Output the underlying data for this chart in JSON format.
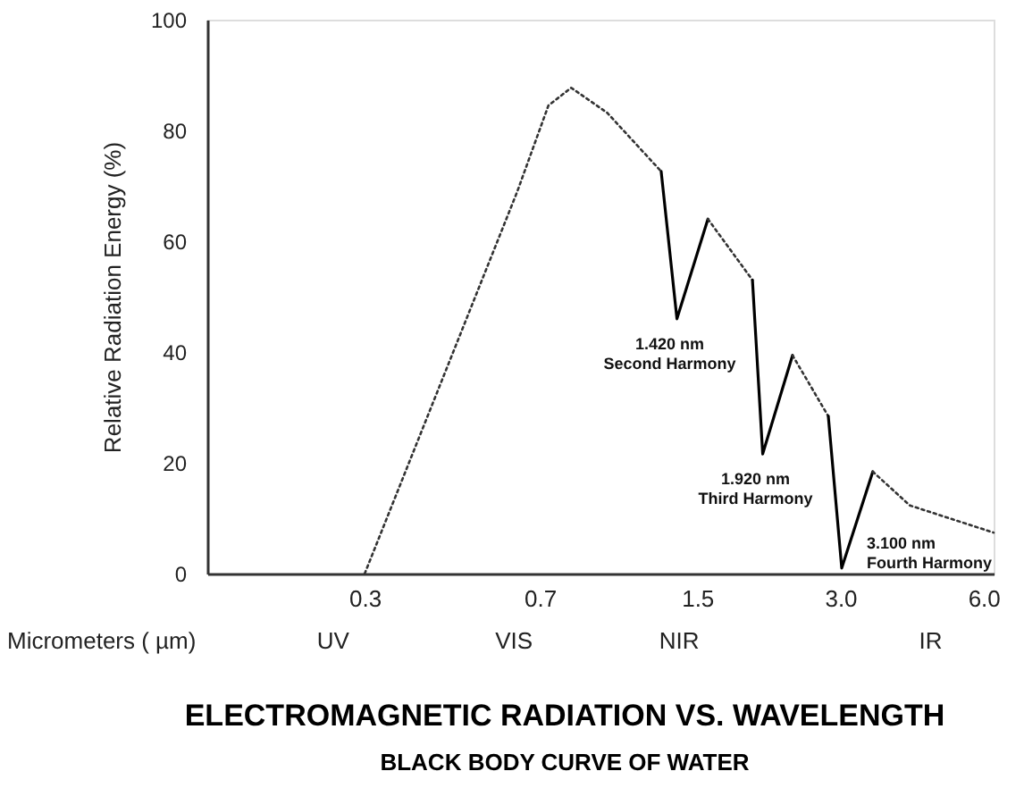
{
  "chart_data": {
    "type": "line",
    "title": "ELECTROMAGNETIC RADIATION VS. WAVELENGTH",
    "subtitle": "BLACK BODY CURVE OF WATER",
    "xlabel": "Micrometers ( µm)",
    "ylabel": "Relative Radiation Energy (%)",
    "log": "x",
    "xlim": [
      0.14,
      6.3
    ],
    "xticks": [
      0.3,
      0.7,
      1.5,
      {
        "value": 3,
        "label": "3.0"
      },
      {
        "value": 6,
        "label": "6.0"
      }
    ],
    "ylim": [
      0,
      100
    ],
    "yticks": [
      0,
      20,
      40,
      60,
      80,
      100
    ],
    "grid": false,
    "marker": "none",
    "series": [
      {
        "color": "#333333",
        "line_style": "dotted",
        "x": [
          0.3,
          0.628,
          0.73,
          0.815,
          0.97,
          1.26
        ],
        "values": [
          0,
          69,
          84.5,
          87.7,
          83.2,
          72.6
        ]
      },
      {
        "color": "#000000",
        "line_style": "solid",
        "x": [
          1.26,
          1.36,
          1.58
        ],
        "values": [
          72.6,
          46,
          64
        ]
      },
      {
        "color": "#333333",
        "line_style": "dotted",
        "x": [
          1.58,
          1.96
        ],
        "values": [
          64,
          53
        ]
      },
      {
        "color": "#000000",
        "line_style": "solid",
        "x": [
          1.96,
          2.06,
          2.38
        ],
        "values": [
          53,
          21.6,
          39.4
        ]
      },
      {
        "color": "#333333",
        "line_style": "dotted",
        "x": [
          2.38,
          2.83
        ],
        "values": [
          39.4,
          28.4
        ]
      },
      {
        "color": "#000000",
        "line_style": "solid",
        "x": [
          2.83,
          3.02,
          3.51
        ],
        "values": [
          28.4,
          1,
          18.4
        ]
      },
      {
        "color": "#333333",
        "line_style": "dotted",
        "x": [
          3.51,
          4.2,
          6.3
        ],
        "values": [
          18.4,
          12.3,
          7.4
        ]
      }
    ],
    "annotations": [
      {
        "text": "1.420 nm\nSecond Harmony",
        "x": 1.36,
        "y": 46
      },
      {
        "text": "1.920 nm\nThird Harmony",
        "x": 2.06,
        "y": 21.6
      },
      {
        "text": "3.100 nm\nFourth Harmony",
        "x": 3.02,
        "y": 1
      },
      "UV",
      "VIS",
      "NIR",
      "IR"
    ]
  }
}
